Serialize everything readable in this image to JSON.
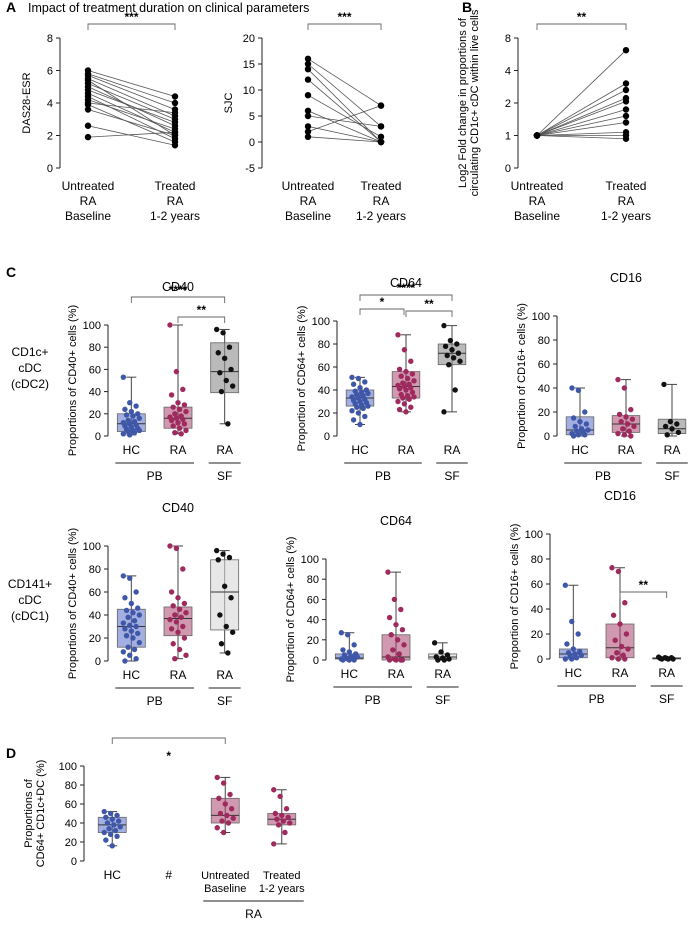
{
  "figure": {
    "panel_labels": {
      "A": "A",
      "B": "B",
      "C": "C",
      "D": "D"
    },
    "panel_a_title": "Impact of treatment duration on clinical parameters",
    "row_labels": [
      [
        "CD1c+",
        "cDC",
        "(cDC2)"
      ],
      [
        "CD141+",
        "cDC",
        "(cDC1)"
      ]
    ],
    "group_labels": {
      "pb": "PB",
      "sf": "SF",
      "ra": "RA"
    }
  },
  "chart_data": [
    {
      "id": "A1",
      "type": "scatter",
      "paired": true,
      "title": "",
      "ylabel": "DAS28-ESR",
      "ylim": [
        0,
        8
      ],
      "yticks": [
        0,
        2,
        4,
        6,
        8
      ],
      "categories": [
        [
          "Untreated",
          "RA",
          "Baseline"
        ],
        [
          "Treated",
          "RA",
          "1-2 years"
        ]
      ],
      "pairs": [
        [
          6.0,
          4.4
        ],
        [
          5.8,
          4.0
        ],
        [
          5.7,
          3.6
        ],
        [
          5.5,
          3.2
        ],
        [
          5.4,
          2.0
        ],
        [
          5.2,
          3.0
        ],
        [
          5.0,
          2.6
        ],
        [
          4.8,
          2.8
        ],
        [
          4.6,
          2.2
        ],
        [
          4.4,
          1.8
        ],
        [
          4.2,
          2.4
        ],
        [
          4.0,
          3.4
        ],
        [
          3.9,
          1.6
        ],
        [
          3.6,
          2.0
        ],
        [
          2.6,
          1.4
        ],
        [
          1.9,
          2.2
        ]
      ],
      "significance": [
        {
          "from": 0,
          "to": 1,
          "label": "***"
        }
      ]
    },
    {
      "id": "A2",
      "type": "scatter",
      "paired": true,
      "title": "",
      "ylabel": "SJC",
      "ylim": [
        -5,
        20
      ],
      "yticks": [
        -5,
        0,
        5,
        10,
        15,
        20
      ],
      "categories": [
        [
          "Untreated",
          "RA",
          "Baseline"
        ],
        [
          "Treated",
          "RA",
          "1-2 years"
        ]
      ],
      "pairs": [
        [
          16,
          7
        ],
        [
          15,
          3
        ],
        [
          14,
          0
        ],
        [
          12,
          0
        ],
        [
          9,
          1
        ],
        [
          6,
          0
        ],
        [
          5,
          3
        ],
        [
          3,
          0
        ],
        [
          2,
          7
        ],
        [
          1,
          0
        ]
      ],
      "significance": [
        {
          "from": 0,
          "to": 1,
          "label": "***"
        }
      ]
    },
    {
      "id": "B",
      "type": "scatter",
      "paired": true,
      "title": "",
      "ylabel": [
        "Log2 Fold change in proportions of",
        "circulating CD1c+ cDC within live cells"
      ],
      "ylim": [
        0,
        8
      ],
      "yticks": [
        0,
        1,
        2,
        4,
        8
      ],
      "yscale": "log2-like",
      "categories": [
        [
          "Untreated",
          "RA",
          "Baseline"
        ],
        [
          "Treated",
          "RA",
          "1-2 years"
        ]
      ],
      "pairs": [
        [
          1,
          6.5
        ],
        [
          1,
          3.2
        ],
        [
          1,
          2.8
        ],
        [
          1,
          2.3
        ],
        [
          1,
          2.1
        ],
        [
          1,
          1.8
        ],
        [
          1,
          1.6
        ],
        [
          1,
          1.4
        ],
        [
          1,
          1.1
        ],
        [
          1,
          1.0
        ],
        [
          1,
          0.9
        ]
      ],
      "significance": [
        {
          "from": 0,
          "to": 1,
          "label": "**"
        }
      ]
    },
    {
      "id": "C1",
      "type": "box",
      "title": "CD40",
      "ylabel": "Proportions of CD40+ cells (%)",
      "ylim": [
        0,
        100
      ],
      "yticks": [
        0,
        20,
        40,
        60,
        80,
        100
      ],
      "categories": [
        "HC",
        "RA",
        "RA"
      ],
      "groups": [
        "PB",
        "PB",
        "SF"
      ],
      "boxes": [
        {
          "min": 1,
          "q1": 4,
          "median": 11,
          "q3": 20,
          "max": 53,
          "points": [
            53,
            30,
            27,
            24,
            22,
            20,
            19,
            18,
            16,
            14,
            13,
            12,
            11,
            10,
            9,
            8,
            7,
            6,
            5,
            5,
            4,
            3,
            2,
            1
          ]
        },
        {
          "min": 2,
          "q1": 7,
          "median": 16,
          "q3": 26,
          "max": 100,
          "points": [
            100,
            58,
            42,
            37,
            30,
            28,
            26,
            24,
            22,
            20,
            18,
            17,
            16,
            15,
            14,
            12,
            11,
            9,
            7,
            5,
            3,
            2
          ]
        },
        {
          "min": 11,
          "q1": 39,
          "median": 58,
          "q3": 84,
          "max": 96,
          "points": [
            96,
            93,
            80,
            75,
            70,
            60,
            57,
            50,
            45,
            40,
            11
          ]
        }
      ],
      "significance": [
        {
          "from": 0,
          "to": 2,
          "label": "****"
        },
        {
          "from": 1,
          "to": 2,
          "label": "**"
        }
      ]
    },
    {
      "id": "C2",
      "type": "box",
      "title": "CD64",
      "ylabel": "Proportion of CD64+ cells (%)",
      "ylim": [
        0,
        100
      ],
      "yticks": [
        0,
        20,
        40,
        60,
        80,
        100
      ],
      "categories": [
        "HC",
        "RA",
        "RA"
      ],
      "groups": [
        "PB",
        "PB",
        "SF"
      ],
      "boxes": [
        {
          "min": 10,
          "q1": 26,
          "median": 33,
          "q3": 40,
          "max": 51,
          "points": [
            51,
            50,
            47,
            45,
            42,
            40,
            39,
            38,
            37,
            36,
            35,
            34,
            33,
            32,
            31,
            30,
            29,
            28,
            27,
            26,
            25,
            24,
            22,
            20,
            17,
            14,
            10
          ]
        },
        {
          "min": 21,
          "q1": 33,
          "median": 43,
          "q3": 56,
          "max": 88,
          "points": [
            88,
            75,
            65,
            58,
            56,
            54,
            52,
            50,
            48,
            46,
            45,
            44,
            43,
            42,
            41,
            40,
            38,
            36,
            35,
            34,
            33,
            32,
            30,
            28,
            25,
            23,
            21
          ]
        },
        {
          "min": 21,
          "q1": 62,
          "median": 72,
          "q3": 80,
          "max": 96,
          "points": [
            96,
            83,
            80,
            78,
            75,
            72,
            70,
            68,
            65,
            62,
            40,
            21
          ]
        }
      ],
      "significance": [
        {
          "from": 0,
          "to": 1,
          "label": "*"
        },
        {
          "from": 0,
          "to": 2,
          "label": "****"
        },
        {
          "from": 1,
          "to": 2,
          "label": "**"
        }
      ]
    },
    {
      "id": "C3",
      "type": "box",
      "title": "CD16",
      "ylabel": "Proportion of CD16+ cells (%)",
      "ylim": [
        0,
        100
      ],
      "yticks": [
        0,
        20,
        40,
        60,
        80,
        100
      ],
      "categories": [
        "HC",
        "RA",
        "RA"
      ],
      "groups": [
        "PB",
        "PB",
        "SF"
      ],
      "boxes": [
        {
          "min": 0,
          "q1": 1,
          "median": 5,
          "q3": 16,
          "max": 40,
          "points": [
            40,
            38,
            20,
            15,
            12,
            10,
            8,
            6,
            5,
            4,
            3,
            2,
            1,
            1,
            0
          ]
        },
        {
          "min": 0,
          "q1": 3,
          "median": 10,
          "q3": 17,
          "max": 47,
          "points": [
            47,
            40,
            22,
            18,
            16,
            14,
            12,
            10,
            8,
            6,
            4,
            2,
            1,
            0
          ]
        },
        {
          "min": 0,
          "q1": 2,
          "median": 6,
          "q3": 14,
          "max": 43,
          "points": [
            43,
            12,
            10,
            8,
            6,
            3,
            1
          ]
        }
      ],
      "significance": []
    },
    {
      "id": "C4",
      "type": "box",
      "title": "CD40",
      "ylabel": "Proportions of CD40+ cells (%)",
      "ylim": [
        0,
        100
      ],
      "yticks": [
        0,
        20,
        40,
        60,
        80,
        100
      ],
      "categories": [
        "HC",
        "RA",
        "RA"
      ],
      "groups": [
        "PB",
        "PB",
        "SF"
      ],
      "boxes": [
        {
          "min": 0,
          "q1": 12,
          "median": 30,
          "q3": 45,
          "max": 74,
          "points": [
            74,
            72,
            60,
            55,
            50,
            46,
            44,
            42,
            40,
            38,
            35,
            33,
            31,
            30,
            28,
            26,
            24,
            22,
            20,
            16,
            12,
            10,
            8,
            5,
            2,
            0
          ]
        },
        {
          "min": 2,
          "q1": 22,
          "median": 37,
          "q3": 47,
          "max": 100,
          "points": [
            100,
            98,
            80,
            60,
            55,
            50,
            48,
            45,
            42,
            40,
            38,
            36,
            34,
            30,
            28,
            25,
            20,
            15,
            10,
            5,
            2
          ]
        },
        {
          "min": 7,
          "q1": 27,
          "median": 60,
          "q3": 88,
          "max": 96,
          "points": [
            96,
            93,
            90,
            88,
            65,
            55,
            40,
            30,
            25,
            15,
            7
          ]
        }
      ],
      "significance": []
    },
    {
      "id": "C5",
      "type": "box",
      "title": "CD64",
      "ylabel": "Proportion of CD64+ cells (%)",
      "ylim": [
        0,
        100
      ],
      "yticks": [
        0,
        20,
        40,
        60,
        80,
        100
      ],
      "categories": [
        "HC",
        "RA",
        "RA"
      ],
      "groups": [
        "PB",
        "PB",
        "SF"
      ],
      "boxes": [
        {
          "min": 0,
          "q1": 1,
          "median": 2,
          "q3": 6,
          "max": 27,
          "points": [
            27,
            25,
            15,
            10,
            8,
            6,
            5,
            4,
            3,
            2,
            2,
            1,
            1,
            0,
            0,
            0
          ]
        },
        {
          "min": 0,
          "q1": 0,
          "median": 3,
          "q3": 25,
          "max": 87,
          "points": [
            87,
            60,
            50,
            42,
            35,
            30,
            25,
            20,
            15,
            10,
            6,
            3,
            1,
            0,
            0,
            0,
            0
          ]
        },
        {
          "min": 0,
          "q1": 1,
          "median": 3,
          "q3": 6,
          "max": 17,
          "points": [
            17,
            8,
            5,
            3,
            2,
            1,
            0,
            0
          ]
        }
      ],
      "significance": []
    },
    {
      "id": "C6",
      "type": "box",
      "title": "CD16",
      "ylabel": "Proportion of CD16+ cells (%)",
      "ylim": [
        0,
        100
      ],
      "yticks": [
        0,
        20,
        40,
        60,
        80,
        100
      ],
      "categories": [
        "HC",
        "RA",
        "RA"
      ],
      "groups": [
        "PB",
        "PB",
        "SF"
      ],
      "boxes": [
        {
          "min": 0,
          "q1": 1,
          "median": 4,
          "q3": 8,
          "max": 59,
          "points": [
            59,
            30,
            20,
            12,
            8,
            6,
            5,
            4,
            3,
            2,
            1,
            0,
            0
          ]
        },
        {
          "min": 0,
          "q1": 1,
          "median": 9,
          "q3": 28,
          "max": 73,
          "points": [
            73,
            70,
            45,
            35,
            28,
            20,
            15,
            10,
            8,
            5,
            3,
            1,
            0,
            0
          ]
        },
        {
          "min": 0,
          "q1": 0,
          "median": 0.5,
          "q3": 1,
          "max": 1.5,
          "points": [
            1.5,
            1,
            1,
            0.5,
            0.5,
            0,
            0,
            0
          ]
        }
      ],
      "significance": [
        {
          "from": 1,
          "to": 2,
          "label": "**"
        }
      ]
    },
    {
      "id": "D",
      "type": "box",
      "title": "",
      "ylabel": [
        "Proportions of",
        "CD64+ CD1c+DC (%)"
      ],
      "ylim": [
        0,
        100
      ],
      "yticks": [
        0,
        20,
        40,
        60,
        80,
        100
      ],
      "categories": [
        "HC",
        "#",
        [
          "Untreated",
          "Baseline"
        ],
        [
          "Treated",
          "1-2 years"
        ]
      ],
      "group_under": {
        "label": "RA",
        "from": 2,
        "to": 3
      },
      "boxes": [
        {
          "min": 16,
          "q1": 30,
          "median": 38,
          "q3": 46,
          "max": 52,
          "points": [
            52,
            50,
            48,
            46,
            44,
            42,
            40,
            38,
            36,
            34,
            32,
            30,
            28,
            26,
            22,
            16
          ]
        },
        null,
        {
          "min": 30,
          "q1": 40,
          "median": 48,
          "q3": 66,
          "max": 88,
          "points": [
            88,
            82,
            70,
            66,
            60,
            55,
            50,
            48,
            45,
            42,
            40,
            35,
            30
          ]
        },
        {
          "min": 18,
          "q1": 38,
          "median": 44,
          "q3": 50,
          "max": 75,
          "points": [
            75,
            68,
            55,
            50,
            48,
            46,
            44,
            42,
            40,
            38,
            30,
            18
          ]
        }
      ],
      "significance": [
        {
          "from": 0,
          "to": 2,
          "label": "*",
          "label_at": 1
        }
      ]
    }
  ]
}
